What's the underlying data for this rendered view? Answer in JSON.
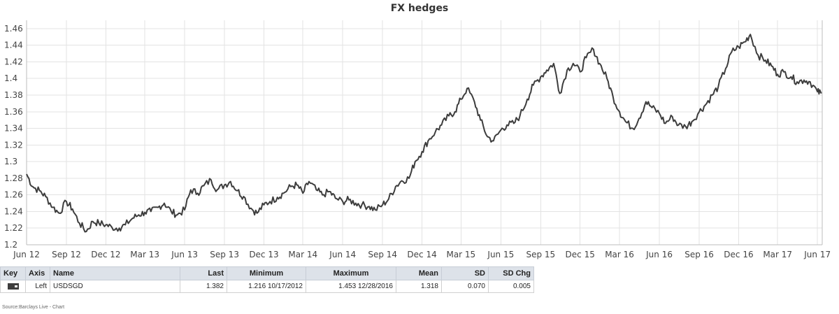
{
  "chart_data": {
    "type": "line",
    "title": "FX hedges",
    "ylim": [
      1.2,
      1.47
    ],
    "y_ticks": [
      "1.2",
      "1.22",
      "1.24",
      "1.26",
      "1.28",
      "1.3",
      "1.32",
      "1.34",
      "1.36",
      "1.38",
      "1.4",
      "1.42",
      "1.44",
      "1.46"
    ],
    "x_ticks": [
      "Jun 12",
      "Sep 12",
      "Dec 12",
      "Mar 13",
      "Jun 13",
      "Sep 13",
      "Dec 13",
      "Mar 14",
      "Jun 14",
      "Sep 14",
      "Dec 14",
      "Mar 15",
      "Jun 15",
      "Sep 15",
      "Dec 15",
      "Mar 16",
      "Jun 16",
      "Sep 16",
      "Dec 16",
      "Mar 17",
      "Jun 17"
    ],
    "grid": true,
    "series": [
      {
        "name": "USDSGD",
        "color": "#3d3d3d",
        "x": [
          "2012-06-01",
          "2012-06-15",
          "2012-07-01",
          "2012-07-15",
          "2012-08-01",
          "2012-08-15",
          "2012-09-01",
          "2012-09-15",
          "2012-10-01",
          "2012-10-17",
          "2012-11-01",
          "2012-11-15",
          "2012-12-01",
          "2012-12-15",
          "2013-01-01",
          "2013-01-15",
          "2013-02-01",
          "2013-02-15",
          "2013-03-01",
          "2013-03-15",
          "2013-04-01",
          "2013-04-15",
          "2013-05-01",
          "2013-05-15",
          "2013-06-01",
          "2013-06-15",
          "2013-07-01",
          "2013-07-15",
          "2013-08-01",
          "2013-08-15",
          "2013-09-01",
          "2013-09-15",
          "2013-10-01",
          "2013-10-15",
          "2013-11-01",
          "2013-11-15",
          "2013-12-01",
          "2013-12-15",
          "2014-01-01",
          "2014-01-15",
          "2014-02-01",
          "2014-02-15",
          "2014-03-01",
          "2014-03-15",
          "2014-04-01",
          "2014-04-15",
          "2014-05-01",
          "2014-05-15",
          "2014-06-01",
          "2014-06-15",
          "2014-07-01",
          "2014-07-15",
          "2014-08-01",
          "2014-08-15",
          "2014-09-01",
          "2014-09-15",
          "2014-10-01",
          "2014-10-15",
          "2014-11-01",
          "2014-11-15",
          "2014-12-01",
          "2014-12-15",
          "2015-01-01",
          "2015-01-15",
          "2015-02-01",
          "2015-02-15",
          "2015-03-01",
          "2015-03-15",
          "2015-04-01",
          "2015-04-15",
          "2015-05-01",
          "2015-05-15",
          "2015-06-01",
          "2015-06-15",
          "2015-07-01",
          "2015-07-15",
          "2015-08-01",
          "2015-08-15",
          "2015-09-01",
          "2015-09-15",
          "2015-10-01",
          "2015-10-15",
          "2015-11-01",
          "2015-11-15",
          "2015-12-01",
          "2015-12-15",
          "2016-01-01",
          "2016-01-15",
          "2016-02-01",
          "2016-02-15",
          "2016-03-01",
          "2016-03-15",
          "2016-04-01",
          "2016-04-15",
          "2016-05-01",
          "2016-05-15",
          "2016-06-01",
          "2016-06-15",
          "2016-07-01",
          "2016-07-15",
          "2016-08-01",
          "2016-08-15",
          "2016-09-01",
          "2016-09-15",
          "2016-10-01",
          "2016-10-15",
          "2016-11-01",
          "2016-11-15",
          "2016-12-01",
          "2016-12-15",
          "2016-12-28",
          "2017-01-15",
          "2017-02-01",
          "2017-02-15",
          "2017-03-01",
          "2017-03-15",
          "2017-04-01",
          "2017-04-15",
          "2017-05-01",
          "2017-05-15",
          "2017-06-01",
          "2017-06-10"
        ],
        "values": [
          1.285,
          1.27,
          1.265,
          1.258,
          1.245,
          1.238,
          1.252,
          1.243,
          1.226,
          1.216,
          1.228,
          1.226,
          1.224,
          1.221,
          1.22,
          1.224,
          1.232,
          1.236,
          1.239,
          1.24,
          1.245,
          1.25,
          1.24,
          1.236,
          1.242,
          1.266,
          1.262,
          1.271,
          1.278,
          1.266,
          1.272,
          1.276,
          1.265,
          1.258,
          1.244,
          1.238,
          1.248,
          1.252,
          1.257,
          1.262,
          1.27,
          1.272,
          1.262,
          1.276,
          1.266,
          1.26,
          1.264,
          1.256,
          1.252,
          1.254,
          1.25,
          1.248,
          1.246,
          1.242,
          1.248,
          1.255,
          1.27,
          1.277,
          1.28,
          1.3,
          1.312,
          1.325,
          1.336,
          1.344,
          1.355,
          1.36,
          1.375,
          1.388,
          1.372,
          1.35,
          1.33,
          1.325,
          1.338,
          1.344,
          1.346,
          1.355,
          1.375,
          1.392,
          1.402,
          1.41,
          1.418,
          1.382,
          1.41,
          1.418,
          1.408,
          1.425,
          1.435,
          1.418,
          1.4,
          1.378,
          1.36,
          1.348,
          1.34,
          1.352,
          1.372,
          1.365,
          1.358,
          1.346,
          1.354,
          1.344,
          1.342,
          1.348,
          1.36,
          1.368,
          1.38,
          1.39,
          1.412,
          1.432,
          1.438,
          1.444,
          1.453,
          1.428,
          1.422,
          1.415,
          1.405,
          1.408,
          1.402,
          1.396,
          1.398,
          1.396,
          1.384,
          1.382
        ]
      }
    ]
  },
  "table": {
    "headers": {
      "key": "Key",
      "axis": "Axis",
      "name": "Name",
      "last": "Last",
      "minimum": "Minimum",
      "maximum": "Maximum",
      "mean": "Mean",
      "sd": "SD",
      "sd_chg": "SD Chg"
    },
    "row": {
      "axis": "Left",
      "name": "USDSGD",
      "last": "1.382",
      "minimum": "1.216 10/17/2012",
      "maximum": "1.453 12/28/2016",
      "mean": "1.318",
      "sd": "0.070",
      "sd_chg": "0.005"
    }
  },
  "source": "Source:Barclays Live - Chart"
}
